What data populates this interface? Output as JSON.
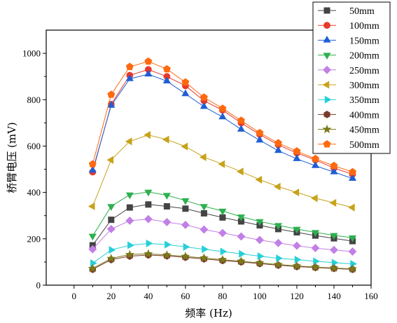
{
  "chart_data": {
    "type": "line",
    "xlabel": "频率 (Hz)",
    "ylabel": "桥臂电压 (mV)",
    "xlim": [
      -15,
      160
    ],
    "ylim": [
      0,
      1100
    ],
    "xticks": [
      0,
      20,
      40,
      60,
      80,
      100,
      120,
      140,
      160
    ],
    "yticks": [
      0,
      200,
      400,
      600,
      800,
      1000
    ],
    "grid": false,
    "legend_position": "top-right",
    "x": [
      10,
      20,
      30,
      40,
      50,
      60,
      70,
      80,
      90,
      100,
      110,
      120,
      130,
      140,
      150
    ],
    "series": [
      {
        "name": "50mm",
        "marker": "square",
        "color": "#444444",
        "values": [
          172,
          282,
          335,
          348,
          340,
          330,
          310,
          292,
          275,
          258,
          242,
          228,
          214,
          202,
          190
        ]
      },
      {
        "name": "100mm",
        "marker": "circle",
        "color": "#e8392b",
        "values": [
          488,
          780,
          905,
          930,
          900,
          860,
          795,
          755,
          700,
          650,
          605,
          570,
          540,
          505,
          478
        ]
      },
      {
        "name": "150mm",
        "marker": "triangle-up",
        "color": "#1f5fd4",
        "values": [
          495,
          775,
          890,
          910,
          880,
          825,
          770,
          725,
          672,
          625,
          580,
          545,
          515,
          488,
          460
        ]
      },
      {
        "name": "200mm",
        "marker": "triangle-down",
        "color": "#2db04e",
        "values": [
          212,
          340,
          390,
          402,
          388,
          365,
          340,
          320,
          295,
          275,
          258,
          242,
          228,
          215,
          205
        ]
      },
      {
        "name": "250mm",
        "marker": "diamond",
        "color": "#c27fe6",
        "values": [
          155,
          242,
          278,
          285,
          272,
          260,
          240,
          225,
          210,
          195,
          182,
          170,
          160,
          152,
          145
        ]
      },
      {
        "name": "300mm",
        "marker": "triangle-left",
        "color": "#c8a21a",
        "values": [
          340,
          540,
          620,
          648,
          628,
          598,
          552,
          522,
          490,
          455,
          425,
          400,
          375,
          355,
          335
        ]
      },
      {
        "name": "350mm",
        "marker": "triangle-right",
        "color": "#26cfd8",
        "values": [
          95,
          152,
          172,
          180,
          175,
          165,
          155,
          145,
          135,
          125,
          116,
          110,
          103,
          97,
          92
        ]
      },
      {
        "name": "400mm",
        "marker": "hexagon",
        "color": "#7b3c2e",
        "values": [
          68,
          110,
          125,
          130,
          126,
          120,
          113,
          106,
          100,
          93,
          86,
          80,
          76,
          72,
          68
        ]
      },
      {
        "name": "450mm",
        "marker": "star",
        "color": "#7a7a1a",
        "values": [
          72,
          115,
          132,
          135,
          130,
          124,
          117,
          110,
          103,
          96,
          89,
          83,
          78,
          74,
          70
        ]
      },
      {
        "name": "500mm",
        "marker": "pentagon",
        "color": "#ff6a10",
        "values": [
          522,
          822,
          942,
          965,
          932,
          875,
          810,
          762,
          710,
          657,
          613,
          578,
          545,
          515,
          488
        ]
      }
    ]
  }
}
